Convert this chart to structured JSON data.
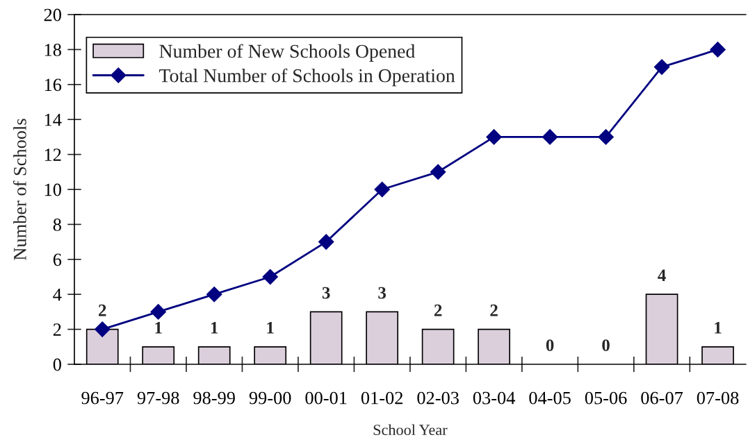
{
  "chart_data": {
    "type": "bar",
    "xlabel": "School Year",
    "ylabel": "Number of Schools",
    "categories": [
      "96-97",
      "97-98",
      "98-99",
      "99-00",
      "00-01",
      "01-02",
      "02-03",
      "03-04",
      "04-05",
      "05-06",
      "06-07",
      "07-08"
    ],
    "series": [
      {
        "name": "Number of New Schools Opened",
        "color": "#dccfdc",
        "values": [
          2,
          1,
          1,
          1,
          3,
          3,
          2,
          2,
          0,
          0,
          4,
          1
        ],
        "data_labels": true
      },
      {
        "name": "Total Number of Schools in Operation",
        "type": "line",
        "color": "#000080",
        "values": [
          2,
          3,
          4,
          5,
          7,
          10,
          11,
          13,
          13,
          13,
          17,
          18
        ],
        "marker": "diamond",
        "line_style": "solid"
      }
    ],
    "ylim": [
      0,
      20
    ],
    "yticks": [
      0,
      2,
      4,
      6,
      8,
      10,
      12,
      14,
      16,
      18,
      20
    ],
    "legend": "top left"
  }
}
